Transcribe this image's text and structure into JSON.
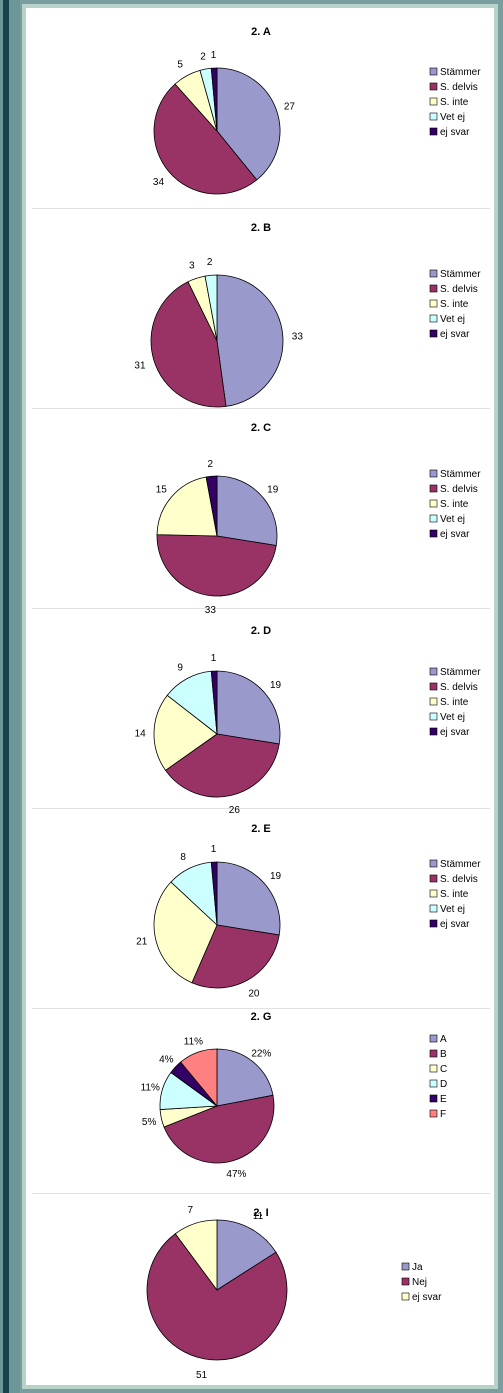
{
  "chart_data": [
    {
      "type": "pie",
      "title": "2. A",
      "labels": [
        "Stämmer",
        "S. delvis",
        "S. inte",
        "Vet ej",
        "ej svar"
      ],
      "values": [
        27,
        34,
        5,
        2,
        1
      ],
      "value_labels": [
        "27",
        "34",
        "5",
        "2",
        "1"
      ],
      "colors": [
        "#9999cc",
        "#993366",
        "#ffffcc",
        "#ccffff",
        "#330066"
      ],
      "legend_position": "right"
    },
    {
      "type": "pie",
      "title": "2. B",
      "labels": [
        "Stämmer",
        "S. delvis",
        "S. inte",
        "Vet ej",
        "ej svar"
      ],
      "values": [
        33,
        31,
        3,
        2,
        0
      ],
      "value_labels": [
        "33",
        "31",
        "3",
        "2",
        ""
      ],
      "colors": [
        "#9999cc",
        "#993366",
        "#ffffcc",
        "#ccffff",
        "#330066"
      ],
      "legend_position": "right"
    },
    {
      "type": "pie",
      "title": "2. C",
      "labels": [
        "Stämmer",
        "S. delvis",
        "S. inte",
        "Vet ej",
        "ej svar"
      ],
      "values": [
        19,
        33,
        15,
        0,
        2
      ],
      "value_labels": [
        "19",
        "33",
        "15",
        "",
        "2"
      ],
      "colors": [
        "#9999cc",
        "#993366",
        "#ffffcc",
        "#ccffff",
        "#330066"
      ],
      "legend_position": "right"
    },
    {
      "type": "pie",
      "title": "2. D",
      "labels": [
        "Stämmer",
        "S. delvis",
        "S. inte",
        "Vet ej",
        "ej svar"
      ],
      "values": [
        19,
        26,
        14,
        9,
        1
      ],
      "value_labels": [
        "19",
        "26",
        "14",
        "9",
        "1"
      ],
      "colors": [
        "#9999cc",
        "#993366",
        "#ffffcc",
        "#ccffff",
        "#330066"
      ],
      "legend_position": "right"
    },
    {
      "type": "pie",
      "title": "2. E",
      "labels": [
        "Stämmer",
        "S. delvis",
        "S. inte",
        "Vet ej",
        "ej svar"
      ],
      "values": [
        19,
        20,
        21,
        8,
        1
      ],
      "value_labels": [
        "19",
        "20",
        "21",
        "8",
        "1"
      ],
      "colors": [
        "#9999cc",
        "#993366",
        "#ffffcc",
        "#ccffff",
        "#330066"
      ],
      "legend_position": "right"
    },
    {
      "type": "pie",
      "title": "2. G",
      "labels": [
        "A",
        "B",
        "C",
        "D",
        "E",
        "F"
      ],
      "values": [
        22,
        47,
        5,
        11,
        4,
        11
      ],
      "value_labels": [
        "22%",
        "47%",
        "5%",
        "11%",
        "4%",
        "11%"
      ],
      "colors": [
        "#9999cc",
        "#993366",
        "#ffffcc",
        "#ccffff",
        "#330066",
        "#ff8080"
      ],
      "legend_position": "right"
    },
    {
      "type": "pie",
      "title": "2. I",
      "labels": [
        "Ja",
        "Nej",
        "ej svar"
      ],
      "values": [
        11,
        51,
        7
      ],
      "value_labels": [
        "11",
        "51",
        "7"
      ],
      "colors": [
        "#9999cc",
        "#993366",
        "#ffffcc"
      ],
      "legend_position": "right"
    }
  ]
}
